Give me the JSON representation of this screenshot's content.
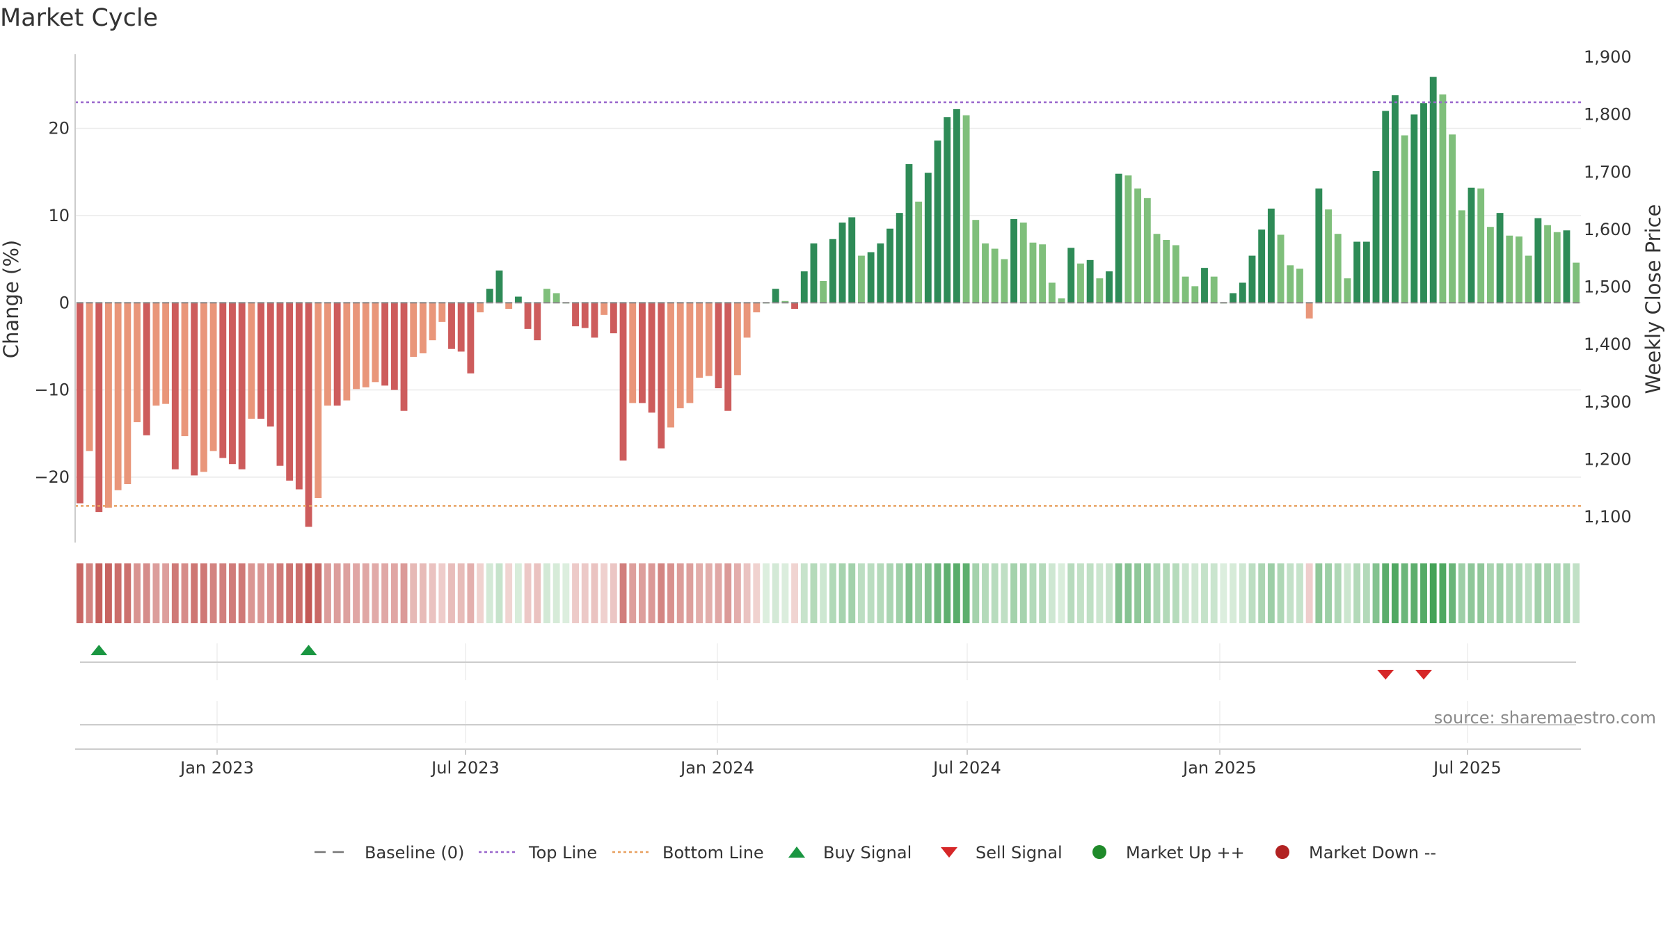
{
  "chart_data": {
    "type": "bar",
    "title": "Market Cycle",
    "y_left_label": "Change (%)",
    "y_right_label": "Weekly Close Price",
    "y_left_ticks": [
      20,
      10,
      0,
      -10,
      -20
    ],
    "y_left_tick_labels": [
      "20",
      "10",
      "0",
      "−10",
      "−20"
    ],
    "y_left_range": [
      -27.5,
      28.5
    ],
    "y_right_ticks": [
      "1,900",
      "1,800",
      "1,700",
      "1,600",
      "1,500",
      "1,400",
      "1,300",
      "1,200",
      "1,100"
    ],
    "top_line": 23,
    "bottom_line": -23.3,
    "x_tick_labels": [
      "Jan 2023",
      "Jul 2023",
      "Jan 2024",
      "Jul 2024",
      "Jan 2025",
      "Jul 2025"
    ],
    "source": "source: sharemaestro.com",
    "bar_colors": {
      "neg_dark": "#cd5c5c",
      "neg_light": "#e9967a",
      "pos_dark": "#2e8b57",
      "pos_light": "#7fbf7b"
    },
    "line_colors": {
      "baseline": "#777777",
      "top_line": "#9966cc",
      "bottom_line": "#e8a060"
    },
    "signal_colors": {
      "buy": "#1a9641",
      "sell": "#d62728"
    },
    "series": [
      {
        "name": "Change (%)",
        "values": [
          -23,
          -17,
          -24,
          -23.5,
          -21.5,
          -20.8,
          -13.7,
          -15.2,
          -11.8,
          -11.6,
          -19.1,
          -15.3,
          -19.8,
          -19.4,
          -17,
          -17.8,
          -18.5,
          -19.1,
          -13.3,
          -13.3,
          -14.2,
          -18.7,
          -20.4,
          -21.4,
          -25.7,
          -22.4,
          -11.8,
          -11.8,
          -11.2,
          -9.9,
          -9.7,
          -9.1,
          -9.5,
          -10,
          -12.4,
          -6.2,
          -5.8,
          -4.3,
          -2.2,
          -5.3,
          -5.6,
          -8.1,
          -1.1,
          1.6,
          3.7,
          -0.7,
          0.7,
          -3,
          -4.3,
          1.6,
          1.1,
          0,
          -2.7,
          -2.9,
          -4,
          -1.4,
          -3.5,
          -18.1,
          -11.5,
          -11.5,
          -12.6,
          -16.7,
          -14.3,
          -12.1,
          -11.5,
          -8.6,
          -8.4,
          -9.8,
          -12.4,
          -8.3,
          -4,
          -1.1,
          0,
          1.6,
          0.2,
          -0.7,
          3.6,
          6.8,
          2.5,
          7.3,
          9.2,
          9.8,
          5.4,
          5.8,
          6.8,
          8.5,
          10.3,
          15.9,
          11.6,
          14.9,
          18.6,
          21.3,
          22.2,
          21.5,
          9.5,
          6.8,
          6.2,
          5,
          9.6,
          9.2,
          6.9,
          6.7,
          2.3,
          0.5,
          6.3,
          4.5,
          4.9,
          2.8,
          3.6,
          14.8,
          14.6,
          13.1,
          12,
          7.9,
          7.2,
          6.6,
          3,
          1.9,
          4,
          3,
          0,
          1.1,
          2.3,
          5.4,
          8.4,
          10.8,
          7.8,
          4.3,
          3.9,
          -1.8,
          13.1,
          10.7,
          7.9,
          2.8,
          7,
          7,
          15.1,
          22,
          23.8,
          19.2,
          21.6,
          22.9,
          25.9,
          23.9,
          19.3,
          10.6,
          13.2,
          13.1,
          8.7,
          10.3,
          7.7,
          7.6,
          5.4,
          9.7,
          8.9,
          8.1,
          8.3,
          4.6
        ]
      }
    ],
    "buy_signal_indices": [
      2,
      24
    ],
    "sell_signal_indices": [
      137,
      141
    ],
    "legend": [
      {
        "label": "Baseline (0)",
        "symbol": "dash",
        "color": "#777777"
      },
      {
        "label": "Top Line",
        "symbol": "dotted",
        "color": "#9966cc"
      },
      {
        "label": "Bottom Line",
        "symbol": "dotted",
        "color": "#e8a060"
      },
      {
        "label": "Buy Signal",
        "symbol": "triangle-up",
        "color": "#1a9641"
      },
      {
        "label": "Sell Signal",
        "symbol": "triangle-down",
        "color": "#d62728"
      },
      {
        "label": "Market Up ++",
        "symbol": "circle",
        "color": "#1f8a2a"
      },
      {
        "label": "Market Down --",
        "symbol": "circle",
        "color": "#b22222"
      }
    ]
  }
}
